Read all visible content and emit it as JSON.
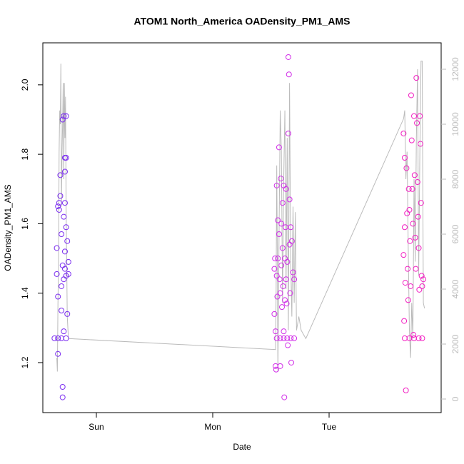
{
  "chart_data": {
    "type": "scatter",
    "title": "ATOM1 North_America OADensity_PM1_AMS",
    "xlabel": "Date",
    "ylabel": "OADensity_PM1_AMS",
    "xlim": [
      -0.46,
      2.963
    ],
    "ylim": [
      1.056,
      2.121
    ],
    "y2lim": [
      -494,
      12961
    ],
    "xticks": [
      {
        "value": 0,
        "label": "Sun"
      },
      {
        "value": 1,
        "label": "Mon"
      },
      {
        "value": 2,
        "label": "Tue"
      }
    ],
    "yticks": [
      1.2,
      1.4,
      1.6,
      1.8,
      {
        "value": 2,
        "label": "2.0"
      }
    ],
    "y2ticks": [
      0,
      2000,
      4000,
      6000,
      8000,
      10000,
      12000
    ],
    "series": [
      {
        "color": "#7b2df0",
        "x": [
          -0.34,
          -0.34,
          -0.33,
          -0.33,
          -0.33,
          -0.32,
          -0.32,
          -0.31,
          -0.31,
          -0.3,
          -0.3,
          -0.3,
          -0.29,
          -0.29,
          -0.29,
          -0.29,
          -0.28,
          -0.28,
          -0.28,
          -0.28,
          -0.27,
          -0.27,
          -0.27,
          -0.27,
          -0.27,
          -0.26,
          -0.26,
          -0.26,
          -0.26,
          -0.25,
          -0.25,
          -0.24,
          -0.24,
          -0.36,
          -0.33,
          -0.3,
          -0.26
        ],
        "values": [
          1.53,
          1.455,
          1.65,
          1.39,
          1.225,
          1.66,
          1.64,
          1.74,
          1.68,
          1.57,
          1.42,
          1.35,
          1.9,
          1.48,
          1.13,
          1.1,
          1.91,
          1.62,
          1.44,
          1.29,
          1.79,
          1.75,
          1.66,
          1.52,
          1.47,
          1.91,
          1.79,
          1.59,
          1.45,
          1.55,
          1.34,
          1.49,
          1.455,
          1.27,
          1.27,
          1.27,
          1.27
        ]
      },
      {
        "color": "#d12ee8",
        "x": [
          1.53,
          1.53,
          1.535,
          1.54,
          1.54,
          1.545,
          1.55,
          1.55,
          1.555,
          1.56,
          1.56,
          1.57,
          1.57,
          1.575,
          1.58,
          1.58,
          1.585,
          1.59,
          1.59,
          1.595,
          1.6,
          1.6,
          1.605,
          1.61,
          1.61,
          1.615,
          1.62,
          1.62,
          1.625,
          1.63,
          1.63,
          1.635,
          1.64,
          1.645,
          1.65,
          1.65,
          1.655,
          1.66,
          1.66,
          1.665,
          1.67,
          1.675,
          1.68,
          1.69,
          1.7,
          1.55,
          1.58,
          1.61,
          1.64,
          1.67,
          1.7
        ],
        "values": [
          1.47,
          1.34,
          1.5,
          1.29,
          1.19,
          1.18,
          1.71,
          1.45,
          1.39,
          1.61,
          1.5,
          1.82,
          1.57,
          1.44,
          1.4,
          1.19,
          1.73,
          1.6,
          1.48,
          1.36,
          1.66,
          1.53,
          1.42,
          1.71,
          1.29,
          1.1,
          1.5,
          1.38,
          1.59,
          1.7,
          1.44,
          1.37,
          1.49,
          1.25,
          2.08,
          1.86,
          2.03,
          1.67,
          1.54,
          1.4,
          1.59,
          1.2,
          1.55,
          1.46,
          1.44,
          1.27,
          1.27,
          1.27,
          1.27,
          1.27,
          1.27
        ]
      },
      {
        "color": "#f21fc2",
        "x": [
          2.64,
          2.64,
          2.645,
          2.65,
          2.65,
          2.655,
          2.66,
          2.665,
          2.67,
          2.675,
          2.68,
          2.685,
          2.69,
          2.695,
          2.7,
          2.705,
          2.71,
          2.715,
          2.72,
          2.725,
          2.73,
          2.735,
          2.74,
          2.745,
          2.75,
          2.755,
          2.76,
          2.765,
          2.77,
          2.775,
          2.78,
          2.785,
          2.79,
          2.795,
          2.8,
          2.81,
          2.65,
          2.69,
          2.73,
          2.77,
          2.8
        ],
        "values": [
          1.86,
          1.51,
          1.32,
          1.79,
          1.59,
          1.43,
          1.12,
          1.76,
          1.63,
          1.47,
          1.38,
          1.7,
          1.64,
          1.55,
          1.42,
          1.97,
          1.84,
          1.7,
          1.6,
          1.28,
          1.91,
          1.74,
          1.56,
          1.47,
          2.02,
          1.89,
          1.72,
          1.62,
          1.53,
          1.41,
          1.91,
          1.83,
          1.66,
          1.45,
          1.42,
          1.44,
          1.27,
          1.27,
          1.27,
          1.27,
          1.27
        ]
      },
      {
        "color": "#bbbbbb",
        "axis": "y2",
        "line": true,
        "x": [
          -0.34,
          -0.335,
          -0.33,
          -0.325,
          -0.32,
          -0.315,
          -0.31,
          -0.305,
          -0.3,
          -0.295,
          -0.29,
          -0.285,
          -0.28,
          -0.275,
          -0.27,
          -0.265,
          -0.26,
          -0.255,
          -0.25,
          -0.24,
          1.54,
          1.545,
          1.55,
          1.555,
          1.56,
          1.57,
          1.58,
          1.59,
          1.6,
          1.61,
          1.62,
          1.63,
          1.64,
          1.65,
          1.66,
          1.67,
          1.68,
          1.69,
          1.7,
          1.71,
          1.72,
          1.74,
          1.76,
          1.8,
          2.64,
          2.65,
          2.66,
          2.67,
          2.68,
          2.69,
          2.7,
          2.71,
          2.72,
          2.73,
          2.74,
          2.75,
          2.76,
          2.77,
          2.78,
          2.79,
          2.8,
          2.81,
          2.82
        ],
        "values": [
          1500,
          1000,
          3500,
          5000,
          9000,
          10500,
          10000,
          12200,
          7000,
          9000,
          10000,
          11500,
          8000,
          11500,
          9500,
          11000,
          7000,
          5000,
          3000,
          2200,
          1800,
          4000,
          8500,
          5500,
          1000,
          6000,
          10500,
          9000,
          3500,
          8000,
          10500,
          4000,
          9500,
          2500,
          11500,
          5000,
          3000,
          7000,
          3500,
          6800,
          2500,
          3000,
          2500,
          2200,
          10200,
          10500,
          8000,
          9000,
          5500,
          2500,
          1500,
          3500,
          2200,
          8000,
          5000,
          9500,
          12000,
          4500,
          9000,
          12300,
          12300,
          3500,
          3300
        ]
      }
    ]
  }
}
